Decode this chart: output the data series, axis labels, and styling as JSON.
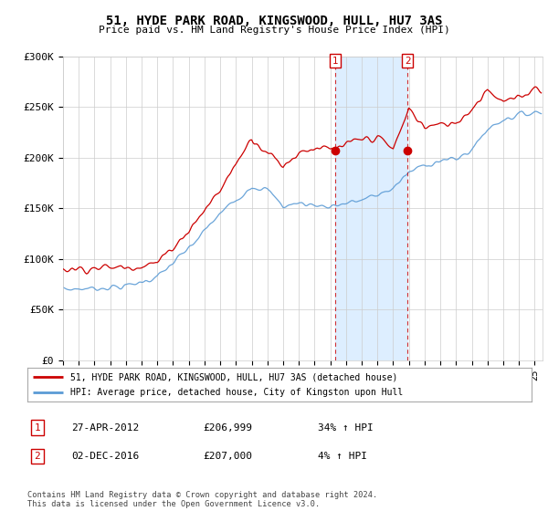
{
  "title": "51, HYDE PARK ROAD, KINGSWOOD, HULL, HU7 3AS",
  "subtitle": "Price paid vs. HM Land Registry's House Price Index (HPI)",
  "legend_line1": "51, HYDE PARK ROAD, KINGSWOOD, HULL, HU7 3AS (detached house)",
  "legend_line2": "HPI: Average price, detached house, City of Kingston upon Hull",
  "annotation1_label": "1",
  "annotation1_date": "27-APR-2012",
  "annotation1_price": "£206,999",
  "annotation1_hpi": "34% ↑ HPI",
  "annotation2_label": "2",
  "annotation2_date": "02-DEC-2016",
  "annotation2_price": "£207,000",
  "annotation2_hpi": "4% ↑ HPI",
  "footer": "Contains HM Land Registry data © Crown copyright and database right 2024.\nThis data is licensed under the Open Government Licence v3.0.",
  "red_color": "#cc0000",
  "blue_color": "#5b9bd5",
  "shade_color": "#ddeeff",
  "background_color": "#ffffff",
  "grid_color": "#cccccc",
  "ylim": [
    0,
    300000
  ],
  "yticks": [
    0,
    50000,
    100000,
    150000,
    200000,
    250000,
    300000
  ],
  "ytick_labels": [
    "£0",
    "£50K",
    "£100K",
    "£150K",
    "£200K",
    "£250K",
    "£300K"
  ],
  "sale1_x": 2012.32,
  "sale1_y": 206999,
  "sale2_x": 2016.92,
  "sale2_y": 207000,
  "xmin": 1995,
  "xmax": 2025.5
}
